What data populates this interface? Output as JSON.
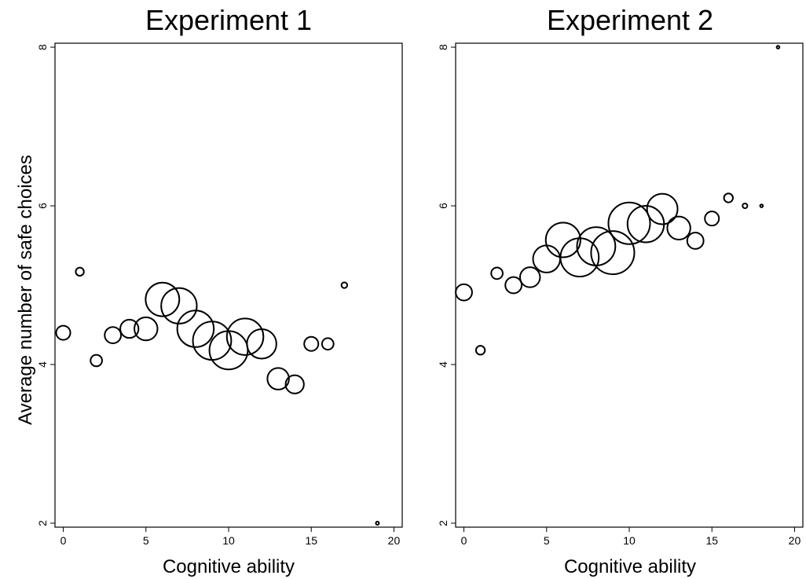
{
  "chart_data": [
    {
      "type": "scatter",
      "title": "Experiment 1",
      "xlabel": "Cognitive ability",
      "ylabel": "Average number of safe choices",
      "xlim": [
        -0.5,
        20.5
      ],
      "ylim": [
        1.95,
        8.05
      ],
      "xticks": [
        0,
        5,
        10,
        15,
        20
      ],
      "yticks": [
        2,
        4,
        6,
        8
      ],
      "grid": false,
      "points": [
        {
          "x": 0,
          "y": 4.4,
          "n": 3
        },
        {
          "x": 1,
          "y": 5.17,
          "n": 1
        },
        {
          "x": 2,
          "y": 4.05,
          "n": 2
        },
        {
          "x": 3,
          "y": 4.37,
          "n": 4
        },
        {
          "x": 4,
          "y": 4.45,
          "n": 5
        },
        {
          "x": 5,
          "y": 4.45,
          "n": 8
        },
        {
          "x": 6,
          "y": 4.82,
          "n": 17
        },
        {
          "x": 7,
          "y": 4.74,
          "n": 19
        },
        {
          "x": 8,
          "y": 4.45,
          "n": 20
        },
        {
          "x": 9,
          "y": 4.3,
          "n": 22
        },
        {
          "x": 10,
          "y": 4.18,
          "n": 22
        },
        {
          "x": 11,
          "y": 4.35,
          "n": 20
        },
        {
          "x": 12,
          "y": 4.26,
          "n": 13
        },
        {
          "x": 13,
          "y": 3.82,
          "n": 7
        },
        {
          "x": 14,
          "y": 3.75,
          "n": 5
        },
        {
          "x": 15,
          "y": 4.26,
          "n": 3
        },
        {
          "x": 16,
          "y": 4.26,
          "n": 2
        },
        {
          "x": 17,
          "y": 5.0,
          "n": 0.5
        },
        {
          "x": 19,
          "y": 2.0,
          "n": 0.15
        }
      ]
    },
    {
      "type": "scatter",
      "title": "Experiment 2",
      "xlabel": "Cognitive ability",
      "ylabel": "",
      "xlim": [
        -0.5,
        20.5
      ],
      "ylim": [
        1.95,
        8.05
      ],
      "xticks": [
        0,
        5,
        10,
        15,
        20
      ],
      "yticks": [
        2,
        4,
        6,
        8
      ],
      "grid": false,
      "points": [
        {
          "x": 0,
          "y": 4.91,
          "n": 4
        },
        {
          "x": 1,
          "y": 4.18,
          "n": 1.2
        },
        {
          "x": 2,
          "y": 5.15,
          "n": 2
        },
        {
          "x": 3,
          "y": 5.0,
          "n": 4
        },
        {
          "x": 4,
          "y": 5.1,
          "n": 6
        },
        {
          "x": 5,
          "y": 5.33,
          "n": 11
        },
        {
          "x": 6,
          "y": 5.57,
          "n": 18
        },
        {
          "x": 7,
          "y": 5.35,
          "n": 22
        },
        {
          "x": 8,
          "y": 5.49,
          "n": 22
        },
        {
          "x": 9,
          "y": 5.41,
          "n": 28
        },
        {
          "x": 10,
          "y": 5.78,
          "n": 26
        },
        {
          "x": 11,
          "y": 5.77,
          "n": 20
        },
        {
          "x": 12,
          "y": 5.96,
          "n": 14
        },
        {
          "x": 13,
          "y": 5.72,
          "n": 8
        },
        {
          "x": 14,
          "y": 5.56,
          "n": 4
        },
        {
          "x": 15,
          "y": 5.84,
          "n": 3
        },
        {
          "x": 16,
          "y": 6.1,
          "n": 1.2
        },
        {
          "x": 17,
          "y": 6.0,
          "n": 0.35
        },
        {
          "x": 18,
          "y": 6.0,
          "n": 0.12
        },
        {
          "x": 19,
          "y": 8.0,
          "n": 0.12
        }
      ]
    }
  ]
}
